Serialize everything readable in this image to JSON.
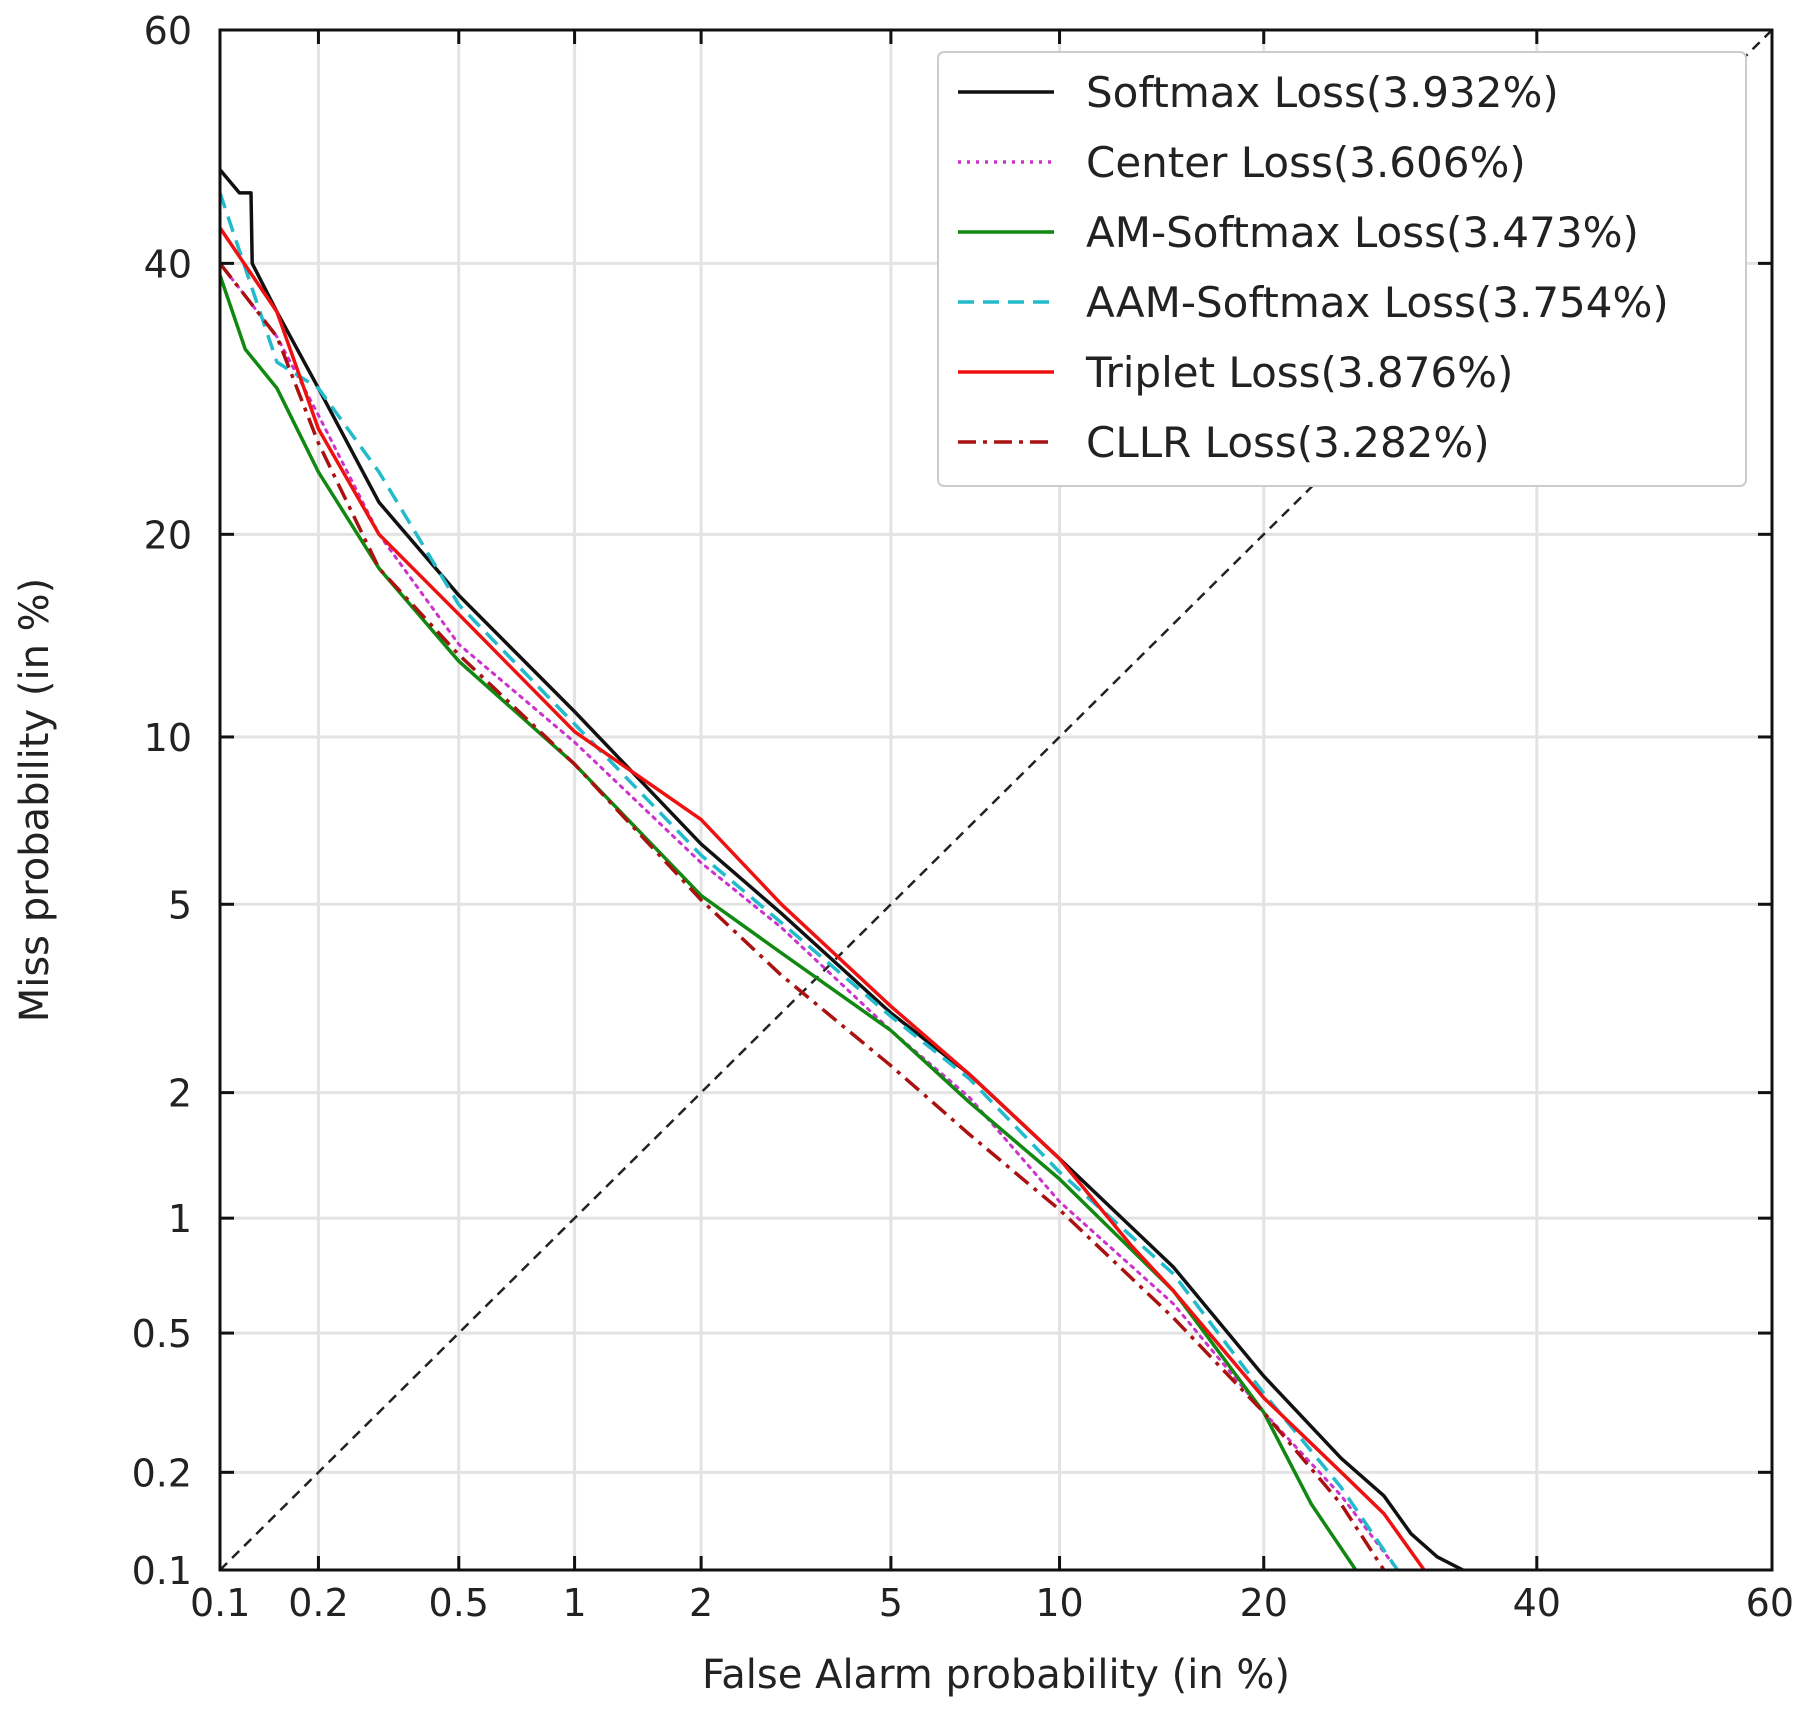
{
  "chart_data": {
    "type": "line",
    "subtype": "DET curve (probit-scaled axes)",
    "title": "",
    "xlabel": "False Alarm probability (in %)",
    "ylabel": "Miss probability (in %)",
    "xlim": [
      0.1,
      60
    ],
    "ylim": [
      0.1,
      60
    ],
    "x_ticks": [
      0.1,
      0.2,
      0.5,
      1,
      2,
      5,
      10,
      20,
      40,
      60
    ],
    "y_ticks": [
      0.1,
      0.2,
      0.5,
      1,
      2,
      5,
      10,
      20,
      40,
      60
    ],
    "x_tick_labels": [
      "0.1",
      "0.2",
      "0.5",
      "1",
      "2",
      "5",
      "10",
      "20",
      "40",
      "60"
    ],
    "y_tick_labels": [
      "0.1",
      "0.2",
      "0.5",
      "1",
      "2",
      "5",
      "10",
      "20",
      "40",
      "60"
    ],
    "grid": true,
    "legend_position": "top-right",
    "reference_line": {
      "name": "equal error line",
      "points": [
        [
          0.1,
          0.1
        ],
        [
          60,
          60
        ]
      ],
      "color": "#222222",
      "style": "dashed"
    },
    "series": [
      {
        "name": "Softmax Loss(3.932%)",
        "eer": 3.932,
        "color": "#111111",
        "style": "solid",
        "x": [
          0.1,
          0.115,
          0.125,
          0.126,
          0.15,
          0.2,
          0.3,
          0.5,
          1,
          2,
          3,
          5,
          7,
          10,
          15,
          20,
          25,
          28,
          30,
          32,
          34
        ],
        "y": [
          48,
          46,
          46,
          40,
          36,
          30,
          22,
          16.5,
          11,
          6.5,
          4.8,
          3,
          2.2,
          1.4,
          0.75,
          0.38,
          0.22,
          0.17,
          0.13,
          0.11,
          0.1
        ]
      },
      {
        "name": "Center Loss(3.606%)",
        "eer": 3.606,
        "color": "#cc33cc",
        "style": "dotted",
        "x": [
          0.1,
          0.15,
          0.2,
          0.3,
          0.5,
          1,
          2,
          3,
          5,
          7,
          10,
          15,
          20,
          25,
          29
        ],
        "y": [
          40,
          34,
          28,
          20,
          14,
          9.8,
          6,
          4.5,
          2.75,
          1.95,
          1.1,
          0.6,
          0.3,
          0.17,
          0.1
        ]
      },
      {
        "name": "AM-Softmax Loss(3.473%)",
        "eer": 3.473,
        "color": "#118811",
        "style": "solid",
        "x": [
          0.1,
          0.12,
          0.15,
          0.2,
          0.3,
          0.5,
          1,
          2,
          3,
          5,
          7,
          10,
          15,
          20,
          23,
          26
        ],
        "y": [
          39,
          33,
          30,
          24,
          18,
          13.2,
          9,
          5.2,
          4,
          2.75,
          1.9,
          1.25,
          0.65,
          0.3,
          0.16,
          0.1
        ]
      },
      {
        "name": "AAM-Softmax Loss(3.754%)",
        "eer": 3.754,
        "color": "#22bbcc",
        "style": "dashed",
        "x": [
          0.1,
          0.15,
          0.2,
          0.3,
          0.5,
          1,
          2,
          3,
          5,
          7,
          10,
          15,
          20,
          25,
          29
        ],
        "y": [
          46,
          32,
          30,
          24,
          16,
          10.5,
          6.2,
          4.6,
          2.95,
          2.15,
          1.3,
          0.72,
          0.34,
          0.18,
          0.1
        ]
      },
      {
        "name": "Triplet Loss(3.876%)",
        "eer": 3.876,
        "color": "#ee1111",
        "style": "solid",
        "x": [
          0.1,
          0.15,
          0.2,
          0.3,
          0.5,
          1,
          2,
          3,
          5,
          7,
          10,
          13,
          15,
          20,
          25,
          28,
          31
        ],
        "y": [
          43,
          36,
          27,
          20,
          15.5,
          10.2,
          7.2,
          5,
          3.1,
          2.2,
          1.4,
          0.85,
          0.65,
          0.33,
          0.2,
          0.15,
          0.1
        ]
      },
      {
        "name": "CLLR Loss(3.282%)",
        "eer": 3.282,
        "color": "#aa1111",
        "style": "dashdot",
        "x": [
          0.1,
          0.15,
          0.2,
          0.3,
          0.5,
          1,
          2,
          3,
          5,
          7,
          10,
          15,
          20,
          25,
          28
        ],
        "y": [
          40,
          34,
          26,
          18,
          13.5,
          9,
          5.1,
          3.6,
          2.3,
          1.6,
          1.05,
          0.55,
          0.3,
          0.16,
          0.1
        ]
      }
    ]
  }
}
